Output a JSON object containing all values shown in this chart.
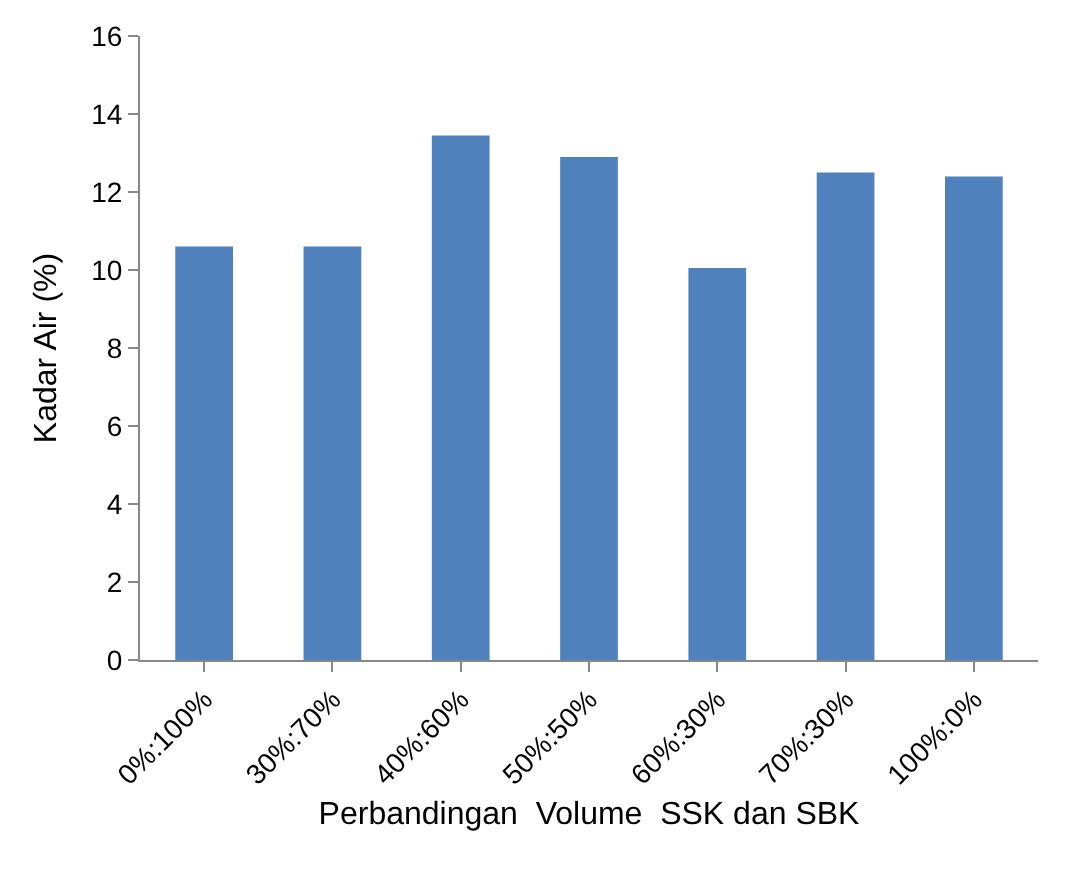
{
  "chart_data": {
    "type": "bar",
    "categories": [
      "0%:100%",
      "30%:70%",
      "40%:60%",
      "50%:50%",
      "60%:30%",
      "70%:30%",
      "100%:0%"
    ],
    "values": [
      10.6,
      10.6,
      13.45,
      12.9,
      10.05,
      12.5,
      12.4
    ],
    "color": "#4f81bd",
    "xlabel": "Perbandingan  Volume  SSK dan SBK",
    "ylabel": "Kadar Air (%)",
    "ylim": [
      0,
      16
    ],
    "yticks": [
      0,
      2,
      4,
      6,
      8,
      10,
      12,
      14,
      16
    ],
    "grid": false
  }
}
